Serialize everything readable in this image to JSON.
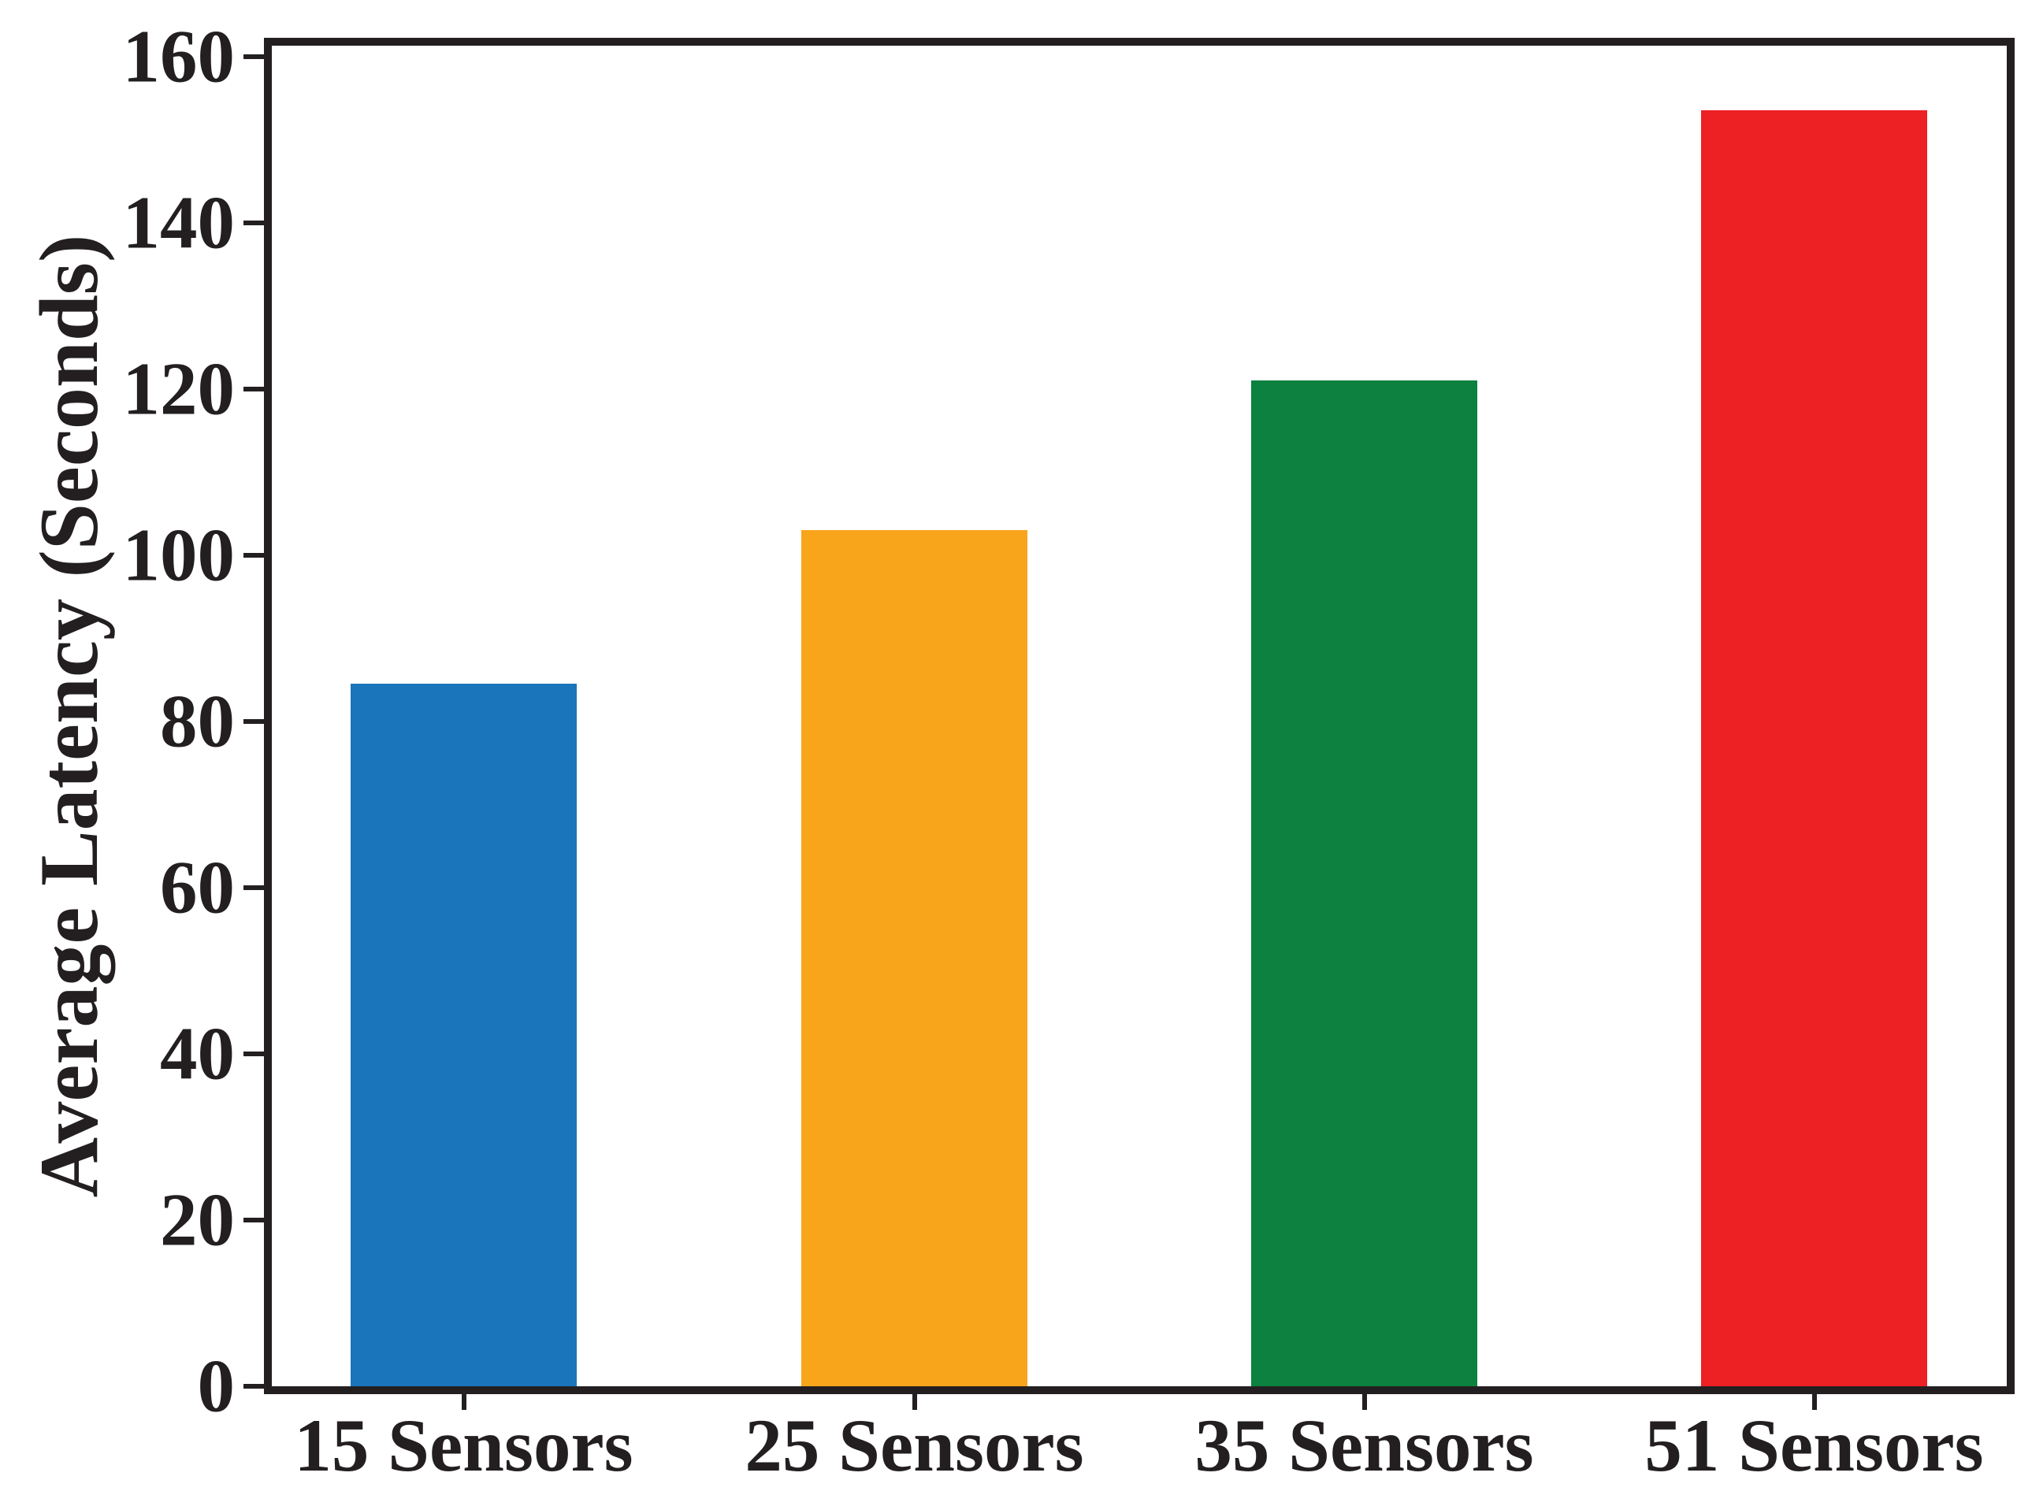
{
  "figure": {
    "background": "#ffffff",
    "axis_color": "#231f20",
    "text_color": "#231f20"
  },
  "chart_data": {
    "type": "bar",
    "title": "",
    "xlabel": "",
    "ylabel": "Average Latency (Seconds)",
    "categories": [
      "15 Sensors",
      "25 Sensors",
      "35 Sensors",
      "51 Sensors"
    ],
    "values": [
      84.5,
      103,
      121,
      153.5
    ],
    "bar_colors": [
      "#1b75bb",
      "#f9a51b",
      "#0c8140",
      "#ed2024"
    ],
    "ylim": [
      0,
      161.3
    ],
    "yticks": [
      0,
      20,
      40,
      60,
      80,
      100,
      120,
      140,
      160
    ],
    "grid": false,
    "legend_position": "none"
  }
}
